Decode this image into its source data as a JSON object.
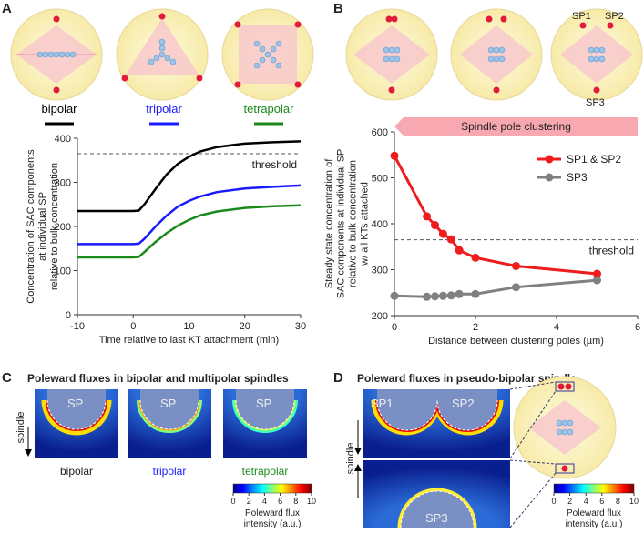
{
  "chart_data": [
    {
      "type": "line",
      "panel": "A",
      "xlabel": "Time relative to last KT attachment (min)",
      "ylabel": [
        "Concentration of SAC components",
        "at individual SP",
        "relative to bulk concentration"
      ],
      "x": [
        -10,
        -5,
        0,
        1,
        2,
        4,
        6,
        8,
        10,
        12,
        15,
        20,
        25,
        30
      ],
      "series": [
        {
          "name": "bipolar",
          "color": "#000000",
          "values": [
            235,
            235,
            235,
            236,
            250,
            285,
            318,
            342,
            358,
            370,
            380,
            388,
            391,
            393
          ]
        },
        {
          "name": "tripolar",
          "color": "#1a1aff",
          "values": [
            160,
            160,
            160,
            161,
            172,
            200,
            225,
            245,
            258,
            268,
            278,
            286,
            290,
            293
          ]
        },
        {
          "name": "tetrapolar",
          "color": "#1a8a1a",
          "values": [
            130,
            130,
            130,
            131,
            142,
            165,
            185,
            202,
            215,
            225,
            234,
            242,
            246,
            248
          ]
        }
      ],
      "xlim": [
        -10,
        30
      ],
      "xticks": [
        -10,
        0,
        10,
        20,
        30
      ],
      "ylim": [
        0,
        400
      ],
      "yticks": [
        0,
        100,
        200,
        300,
        400
      ],
      "reference_line": {
        "value": 365,
        "label": "threshold"
      },
      "legend": "top",
      "markers": false
    },
    {
      "type": "line",
      "panel": "B",
      "xlabel": "Distance between clustering poles (µm)",
      "ylabel": [
        "Steady state concentration of",
        "SAC components  at individual SP",
        "relative to bulk concentration",
        "w/ all KTs attached"
      ],
      "annotation": "Spindle pole clustering",
      "x": [
        0,
        0.8,
        1,
        1.2,
        1.4,
        1.6,
        2,
        3,
        5
      ],
      "series": [
        {
          "name": "SP1 & SP2",
          "color": "#ee1c1c",
          "values": [
            548,
            416,
            397,
            378,
            366,
            342,
            326,
            308,
            291
          ]
        },
        {
          "name": "SP3",
          "color": "#808080",
          "values": [
            243,
            241,
            242,
            243,
            244,
            247,
            247,
            262,
            277
          ]
        }
      ],
      "xlim": [
        0,
        6
      ],
      "xticks": [
        0,
        2,
        4,
        6
      ],
      "ylim": [
        200,
        600
      ],
      "yticks": [
        200,
        300,
        400,
        500,
        600
      ],
      "reference_line": {
        "value": 365,
        "label": "threshold"
      },
      "legend": "upper right",
      "markers": true
    }
  ],
  "figure": {
    "panel_letters": [
      "A",
      "B",
      "C",
      "D"
    ],
    "panel_b_labels": [
      "SP1",
      "SP2",
      "SP3"
    ],
    "panel_c": {
      "title": "Poleward fluxes in bipolar and multipolar spindles",
      "pole": "SP",
      "axis": "spindle",
      "captions": [
        "bipolar",
        "tripolar",
        "tetrapolar"
      ],
      "colorbar": {
        "ticks": [
          0,
          2,
          4,
          6,
          8,
          10
        ],
        "label": [
          "Poleward flux",
          "intensity (a.u.)"
        ]
      }
    },
    "panel_d": {
      "title": "Poleward fluxes in pseudo-bipolar spindle",
      "poles": [
        "SP1",
        "SP2",
        "SP3"
      ],
      "axis": "spindle",
      "colorbar": {
        "ticks": [
          0,
          2,
          4,
          6,
          8,
          10
        ],
        "label": [
          "Poleward flux",
          "intensity (a.u.)"
        ]
      }
    }
  }
}
